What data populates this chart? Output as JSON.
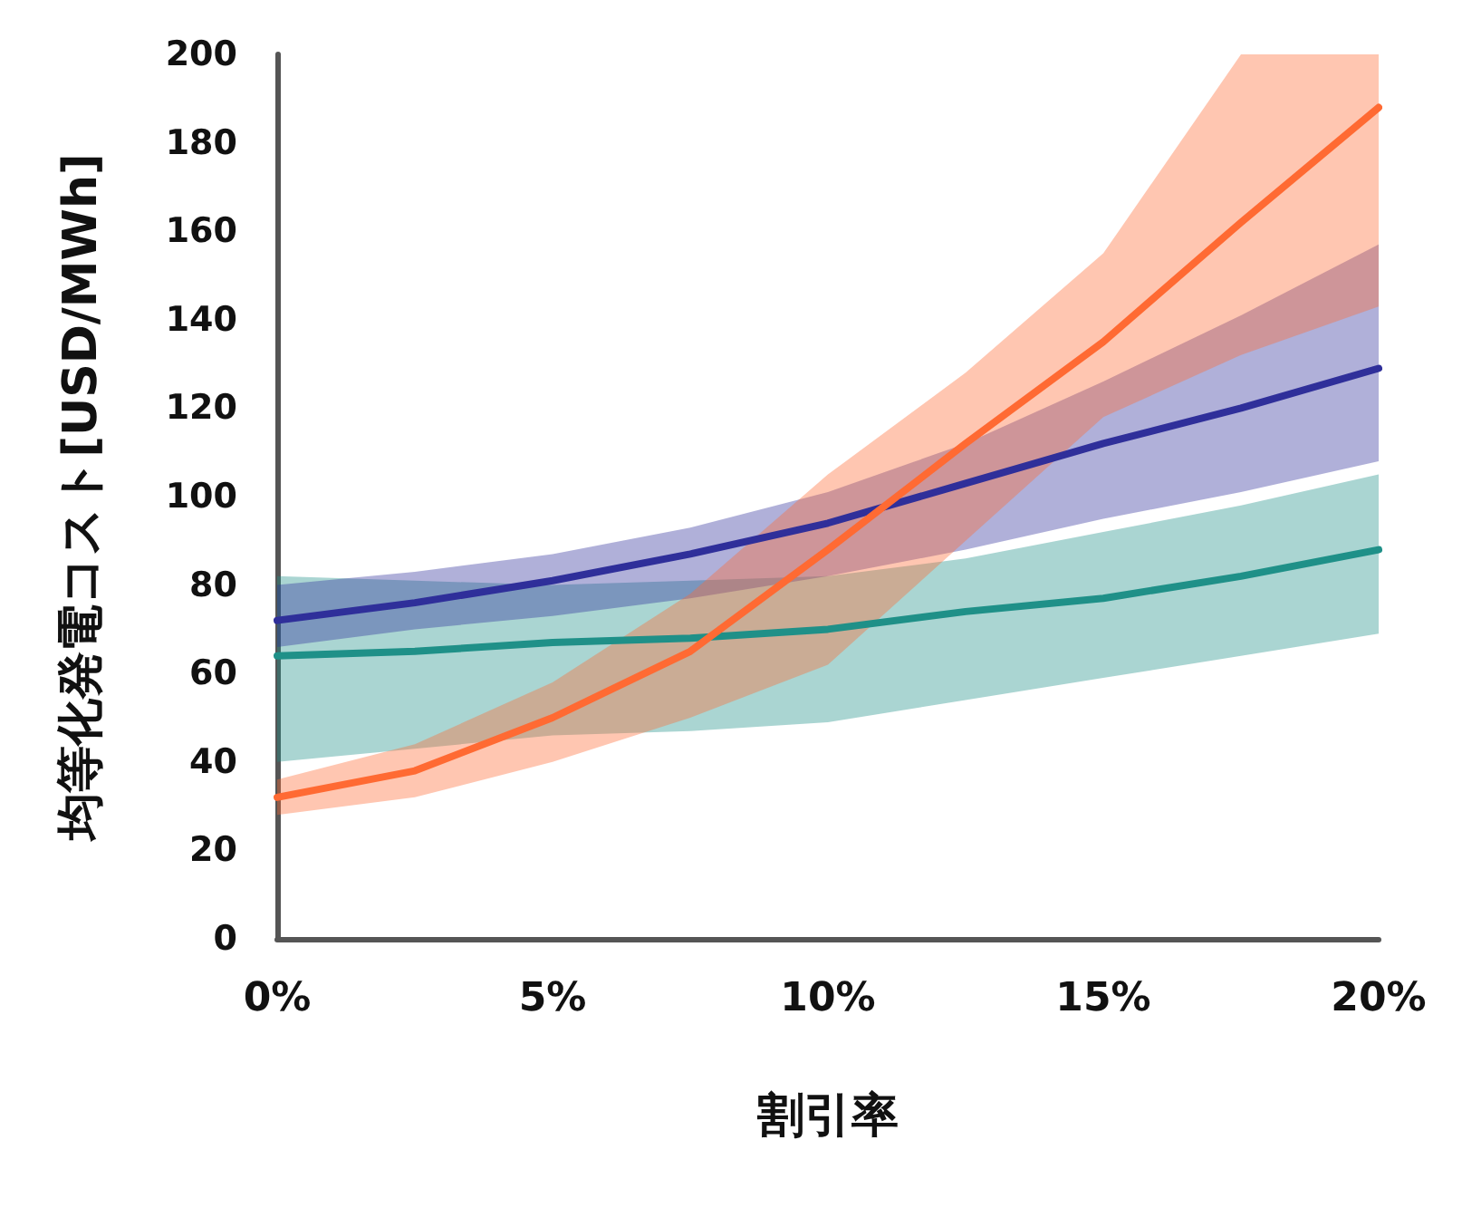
{
  "chart_data": {
    "type": "line",
    "xlabel": "割引率",
    "ylabel": "均等化発電コスト[USD/MWh]",
    "x": [
      0,
      2.5,
      5,
      7.5,
      10,
      12.5,
      15,
      17.5,
      20
    ],
    "xlim": [
      0,
      20
    ],
    "xticks": [
      {
        "value": 0,
        "label": "0%"
      },
      {
        "value": 5,
        "label": "5%"
      },
      {
        "value": 10,
        "label": "10%"
      },
      {
        "value": 15,
        "label": "15%"
      },
      {
        "value": 20,
        "label": "20%"
      }
    ],
    "ylim": [
      0,
      200
    ],
    "yticks": [
      0,
      20,
      40,
      60,
      80,
      100,
      120,
      140,
      160,
      180,
      200
    ],
    "grid": false,
    "marker": "none",
    "line_style": "solid",
    "series": [
      {
        "color": "#1f9088",
        "values": [
          64,
          65,
          67,
          68,
          70,
          74,
          77,
          82,
          88
        ],
        "lower": [
          40,
          43,
          46,
          47,
          49,
          54,
          59,
          64,
          69
        ],
        "upper": [
          82,
          81,
          80,
          81,
          82,
          86,
          92,
          98,
          105
        ]
      },
      {
        "color": "#2f2f9a",
        "values": [
          72,
          76,
          81,
          87,
          94,
          103,
          112,
          120,
          129
        ],
        "lower": [
          66,
          70,
          73,
          77,
          82,
          88,
          95,
          101,
          108
        ],
        "upper": [
          80,
          83,
          87,
          93,
          101,
          112,
          126,
          141,
          157
        ]
      },
      {
        "color": "#ff6a33",
        "values": [
          32,
          38,
          50,
          65,
          88,
          112,
          135,
          162,
          188
        ],
        "lower": [
          28,
          32,
          40,
          50,
          62,
          90,
          118,
          132,
          143
        ],
        "upper": [
          36,
          44,
          58,
          78,
          105,
          128,
          155,
          200,
          200
        ]
      }
    ]
  }
}
